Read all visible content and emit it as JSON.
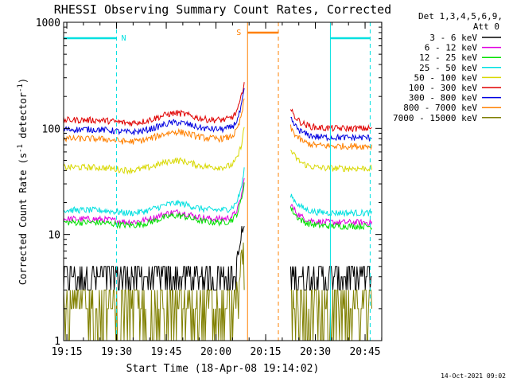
{
  "chart_data": {
    "type": "line",
    "title": "RHESSI Observing Summary Count Rates, Corrected",
    "xlabel": "Start Time (18-Apr-08 19:14:02)",
    "ylabel": "Corrected Count Rate (s",
    "ylabel_exp1": "-1",
    "ylabel_mid": " detector",
    "ylabel_exp2": "-1",
    "ylabel_end": ")",
    "yscale": "log",
    "ylim": [
      1,
      1000
    ],
    "xlim_minutes": [
      0,
      96
    ],
    "x_ticks": [
      {
        "label": "19:15",
        "min": 0.97
      },
      {
        "label": "19:30",
        "min": 15.97
      },
      {
        "label": "19:45",
        "min": 30.97
      },
      {
        "label": "20:00",
        "min": 45.97
      },
      {
        "label": "20:15",
        "min": 60.97
      },
      {
        "label": "20:30",
        "min": 75.97
      },
      {
        "label": "20:45",
        "min": 90.97
      }
    ],
    "y_ticks": [
      {
        "label": "1",
        "v": 1
      },
      {
        "label": "10",
        "v": 10
      },
      {
        "label": "100",
        "v": 100
      },
      {
        "label": "1000",
        "v": 1000
      }
    ],
    "legend_header": [
      "Det 1,3,4,5,6,9,",
      "Att 0"
    ],
    "legend_position": "right",
    "series": [
      {
        "name": "3 - 6 keV",
        "color": "#000000",
        "pre": 3.5,
        "post": 4
      },
      {
        "name": "6 - 12 keV",
        "color": "#e000e0",
        "pre": 14,
        "post": 13
      },
      {
        "name": "12 - 25 keV",
        "color": "#00e000",
        "pre": 13,
        "post": 12
      },
      {
        "name": "25 - 50 keV",
        "color": "#00e0e0",
        "pre": 17,
        "post": 16
      },
      {
        "name": "50 - 100 keV",
        "color": "#d8d800",
        "pre": 43,
        "post": 42
      },
      {
        "name": "100 - 300 keV",
        "color": "#e00000",
        "pre": 120,
        "post": 100
      },
      {
        "name": "300 - 800 keV",
        "color": "#0000e0",
        "pre": 98,
        "post": 82
      },
      {
        "name": "800 - 7000 keV",
        "color": "#ff8000",
        "pre": 80,
        "post": 68
      },
      {
        "name": "7000 - 15000 keV",
        "color": "#808000",
        "pre": 2.0,
        "post": 2.2
      }
    ],
    "flags": [
      {
        "label": "N",
        "color": "#00e0e0"
      },
      {
        "label": "S",
        "color": "#ff8000"
      }
    ],
    "grid": false
  },
  "footer": {
    "timestamp": "14-Oct-2021 09:02"
  }
}
